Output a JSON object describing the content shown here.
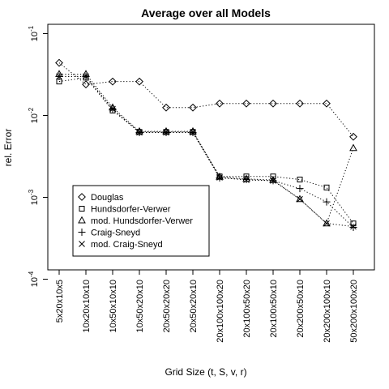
{
  "chart_data": {
    "type": "line",
    "title": "Average over all Models",
    "xlabel": "Grid Size (t, S, v, r)",
    "ylabel": "rel. Error",
    "yscale": "log",
    "ylim": [
      0.00013,
      0.13
    ],
    "y_ticks": [
      {
        "value": 0.1,
        "base": "10",
        "exp": "-1"
      },
      {
        "value": 0.01,
        "base": "10",
        "exp": "-2"
      },
      {
        "value": 0.001,
        "base": "10",
        "exp": "-3"
      },
      {
        "value": 0.0001,
        "base": "10",
        "exp": "-4"
      }
    ],
    "categories": [
      "5x20x10x5",
      "10x20x10x10",
      "10x50x10x10",
      "10x50x20x10",
      "20x50x20x20",
      "20x50x20x10",
      "20x100x100x20",
      "20x100x50x20",
      "20x100x50x10",
      "20x200x50x10",
      "20x200x100x10",
      "50x200x100x20"
    ],
    "legend_position": "bottom-left",
    "grid": false,
    "series": [
      {
        "name": "Douglas",
        "marker": "diamond",
        "values": [
          0.044,
          0.024,
          0.026,
          0.026,
          0.0125,
          0.0125,
          0.014,
          0.014,
          0.014,
          0.014,
          0.014,
          0.0055
        ]
      },
      {
        "name": "Hundsdorfer-Verwer",
        "marker": "square",
        "values": [
          0.026,
          0.029,
          0.0115,
          0.0063,
          0.0063,
          0.0063,
          0.0018,
          0.0018,
          0.0018,
          0.00165,
          0.00132,
          0.00048
        ]
      },
      {
        "name": "mod. Hundsdorfer-Verwer",
        "marker": "triangle",
        "values": [
          0.032,
          0.032,
          0.0125,
          0.0064,
          0.0064,
          0.0064,
          0.00178,
          0.00168,
          0.00163,
          0.00095,
          0.00048,
          0.004
        ]
      },
      {
        "name": "Craig-Sneyd",
        "marker": "plus",
        "values": [
          0.03,
          0.03,
          0.012,
          0.0062,
          0.0062,
          0.0062,
          0.00173,
          0.00165,
          0.0016,
          0.00128,
          0.00088,
          0.00043
        ]
      },
      {
        "name": "mod. Craig-Sneyd",
        "marker": "x",
        "values": [
          0.03,
          0.03,
          0.012,
          0.0062,
          0.0062,
          0.0062,
          0.00175,
          0.00163,
          0.0016,
          0.00095,
          0.00048,
          0.00044
        ]
      }
    ]
  }
}
